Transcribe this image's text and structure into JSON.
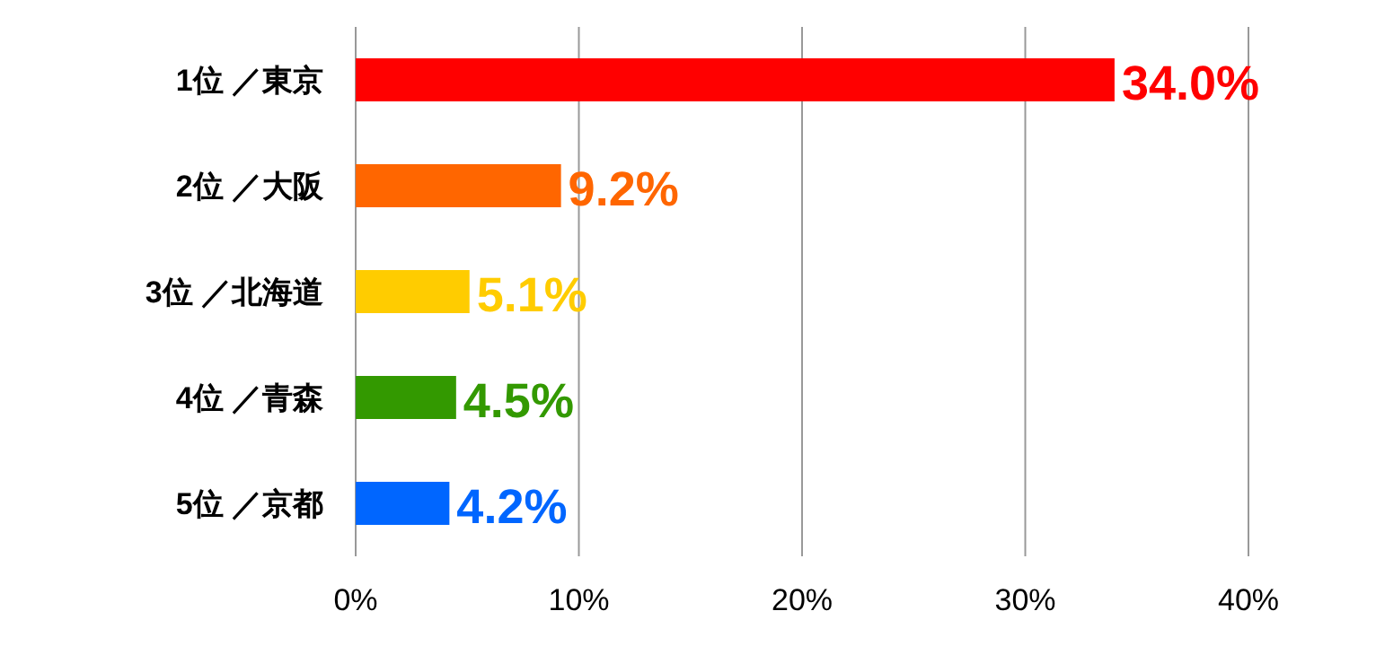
{
  "chart_data": {
    "type": "bar",
    "orientation": "horizontal",
    "categories": [
      "1位 ／東京",
      "2位 ／大阪",
      "3位 ／北海道",
      "4位 ／青森",
      "5位 ／京都"
    ],
    "values": [
      34.0,
      9.2,
      5.1,
      4.5,
      4.2
    ],
    "colors": [
      "#ff0000",
      "#ff6600",
      "#ffcc00",
      "#339900",
      "#0066ff"
    ],
    "value_labels": [
      "34.0%",
      "9.2%",
      "5.1%",
      "4.5%",
      "4.2%"
    ],
    "xlim": [
      0,
      40
    ],
    "xticks": [
      {
        "value": 0,
        "label": "0%"
      },
      {
        "value": 10,
        "label": "10%"
      },
      {
        "value": 20,
        "label": "20%"
      },
      {
        "value": 30,
        "label": "30%"
      },
      {
        "value": 40,
        "label": "40%"
      }
    ],
    "grid": "x"
  }
}
